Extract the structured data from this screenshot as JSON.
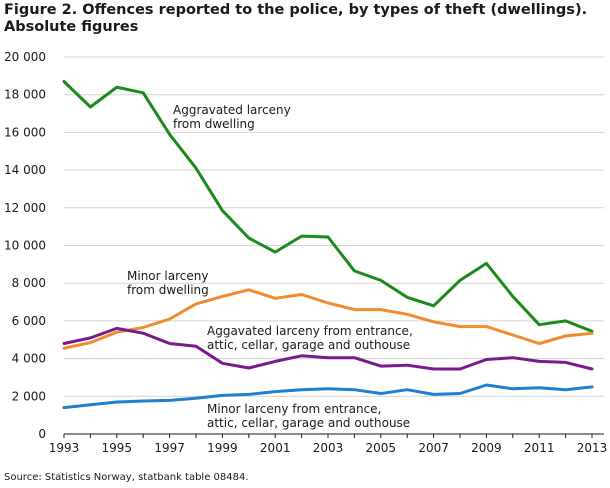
{
  "title_line1": "Figure 2. Offences reported to the police, by types of theft (dwellings).",
  "title_line2": "Absolute figures",
  "source": "Source: Statistics Norway, statbank table 08484.",
  "chart_data": {
    "type": "line",
    "title": "Figure 2. Offences reported to the police, by types of theft (dwellings). Absolute figures",
    "xlabel": "",
    "ylabel": "",
    "ylim": [
      0,
      20000
    ],
    "grid": "horizontal",
    "y_ticks": [
      0,
      2000,
      4000,
      6000,
      8000,
      10000,
      12000,
      14000,
      16000,
      18000,
      20000
    ],
    "y_tick_labels": [
      "0",
      "2 000",
      "4 000",
      "6 000",
      "8 000",
      "10 000",
      "12 000",
      "14 000",
      "16 000",
      "18 000",
      "20 000"
    ],
    "x_tick_labels": [
      "1993",
      "1995",
      "1997",
      "1999",
      "2001",
      "2003",
      "2005",
      "2007",
      "2009",
      "2011",
      "2013"
    ],
    "x": [
      1993,
      1994,
      1995,
      1996,
      1997,
      1998,
      1999,
      2000,
      2001,
      2002,
      2003,
      2004,
      2005,
      2006,
      2007,
      2008,
      2009,
      2010,
      2011,
      2012,
      2013
    ],
    "series": [
      {
        "name": "Aggravated larceny from dwelling",
        "label_lines": [
          "Aggravated larceny",
          "from dwelling"
        ],
        "color": "#1a8a1a",
        "values": [
          18700,
          17350,
          18400,
          18100,
          15900,
          14100,
          11850,
          10400,
          9650,
          10500,
          10450,
          8650,
          8150,
          7250,
          6800,
          8150,
          9050,
          7300,
          5800,
          6000,
          5450
        ]
      },
      {
        "name": "Minor larceny from dwelling",
        "label_lines": [
          "Minor larceny",
          "from dwelling"
        ],
        "color": "#f28a2e",
        "values": [
          4550,
          4850,
          5400,
          5650,
          6100,
          6900,
          7300,
          7650,
          7200,
          7400,
          6950,
          6600,
          6600,
          6350,
          5950,
          5700,
          5700,
          5250,
          4800,
          5200,
          5350
        ]
      },
      {
        "name": "Aggavated larceny from entrance, attic, cellar, garage and outhouse",
        "label_lines": [
          "Aggavated larceny from entrance,",
          "attic, cellar, garage and outhouse"
        ],
        "color": "#7a1a8c",
        "values": [
          4800,
          5100,
          5600,
          5350,
          4800,
          4650,
          3750,
          3500,
          3850,
          4150,
          4050,
          4050,
          3600,
          3650,
          3450,
          3450,
          3950,
          4050,
          3850,
          3800,
          3450
        ]
      },
      {
        "name": "Minor larceny from entrance, attic, cellar, garage and outhouse",
        "label_lines": [
          "Minor larceny from entrance,",
          "attic, cellar, garage and outhouse"
        ],
        "color": "#1f7fd0",
        "values": [
          1400,
          1550,
          1700,
          1750,
          1780,
          1900,
          2050,
          2100,
          2250,
          2350,
          2400,
          2350,
          2150,
          2350,
          2100,
          2150,
          2600,
          2400,
          2450,
          2350,
          2500
        ]
      }
    ]
  }
}
